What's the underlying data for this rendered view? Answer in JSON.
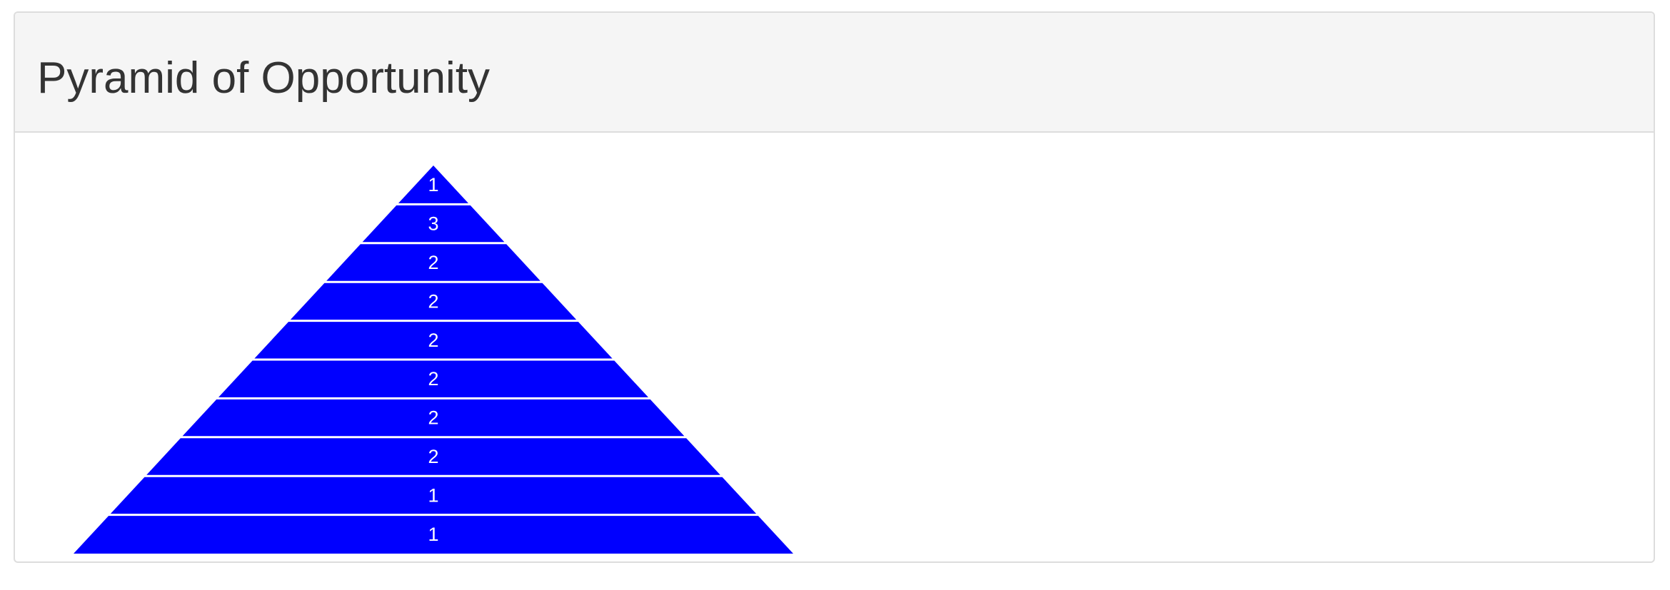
{
  "panel": {
    "title": "Pyramid of Opportunity"
  },
  "chart_data": {
    "type": "pyramid",
    "levels": [
      {
        "level": 1,
        "value": 1
      },
      {
        "level": 2,
        "value": 3
      },
      {
        "level": 3,
        "value": 2
      },
      {
        "level": 4,
        "value": 2
      },
      {
        "level": 5,
        "value": 2
      },
      {
        "level": 6,
        "value": 2
      },
      {
        "level": 7,
        "value": 2
      },
      {
        "level": 8,
        "value": 2
      },
      {
        "level": 9,
        "value": 1
      },
      {
        "level": 10,
        "value": 1
      }
    ],
    "fill_color": "#0000ff",
    "label_color": "#ffffff",
    "separator_color": "#ffffff"
  }
}
